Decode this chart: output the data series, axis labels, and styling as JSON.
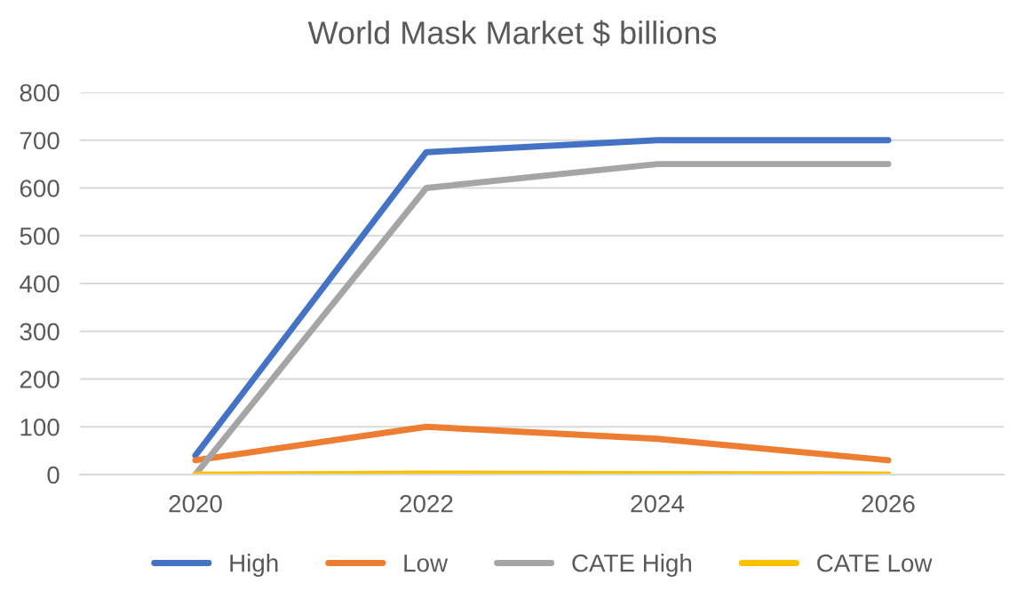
{
  "chart_data": {
    "type": "line",
    "title": "World Mask Market $ billions",
    "categories": [
      "2020",
      "2022",
      "2024",
      "2026"
    ],
    "series": [
      {
        "name": "High",
        "color": "#4472c4",
        "values": [
          40,
          675,
          700,
          700
        ]
      },
      {
        "name": "Low",
        "color": "#ed7d31",
        "values": [
          30,
          100,
          75,
          30
        ]
      },
      {
        "name": "CATE High",
        "color": "#a5a5a5",
        "values": [
          0,
          600,
          650,
          650
        ]
      },
      {
        "name": "CATE Low",
        "color": "#ffc000",
        "values": [
          0,
          2,
          1,
          0
        ]
      }
    ],
    "ylim": [
      0,
      800
    ],
    "yticks": [
      0,
      100,
      200,
      300,
      400,
      500,
      600,
      700,
      800
    ],
    "grid": "y",
    "legend": "bottom",
    "marker": "none",
    "line_style": "solid"
  }
}
